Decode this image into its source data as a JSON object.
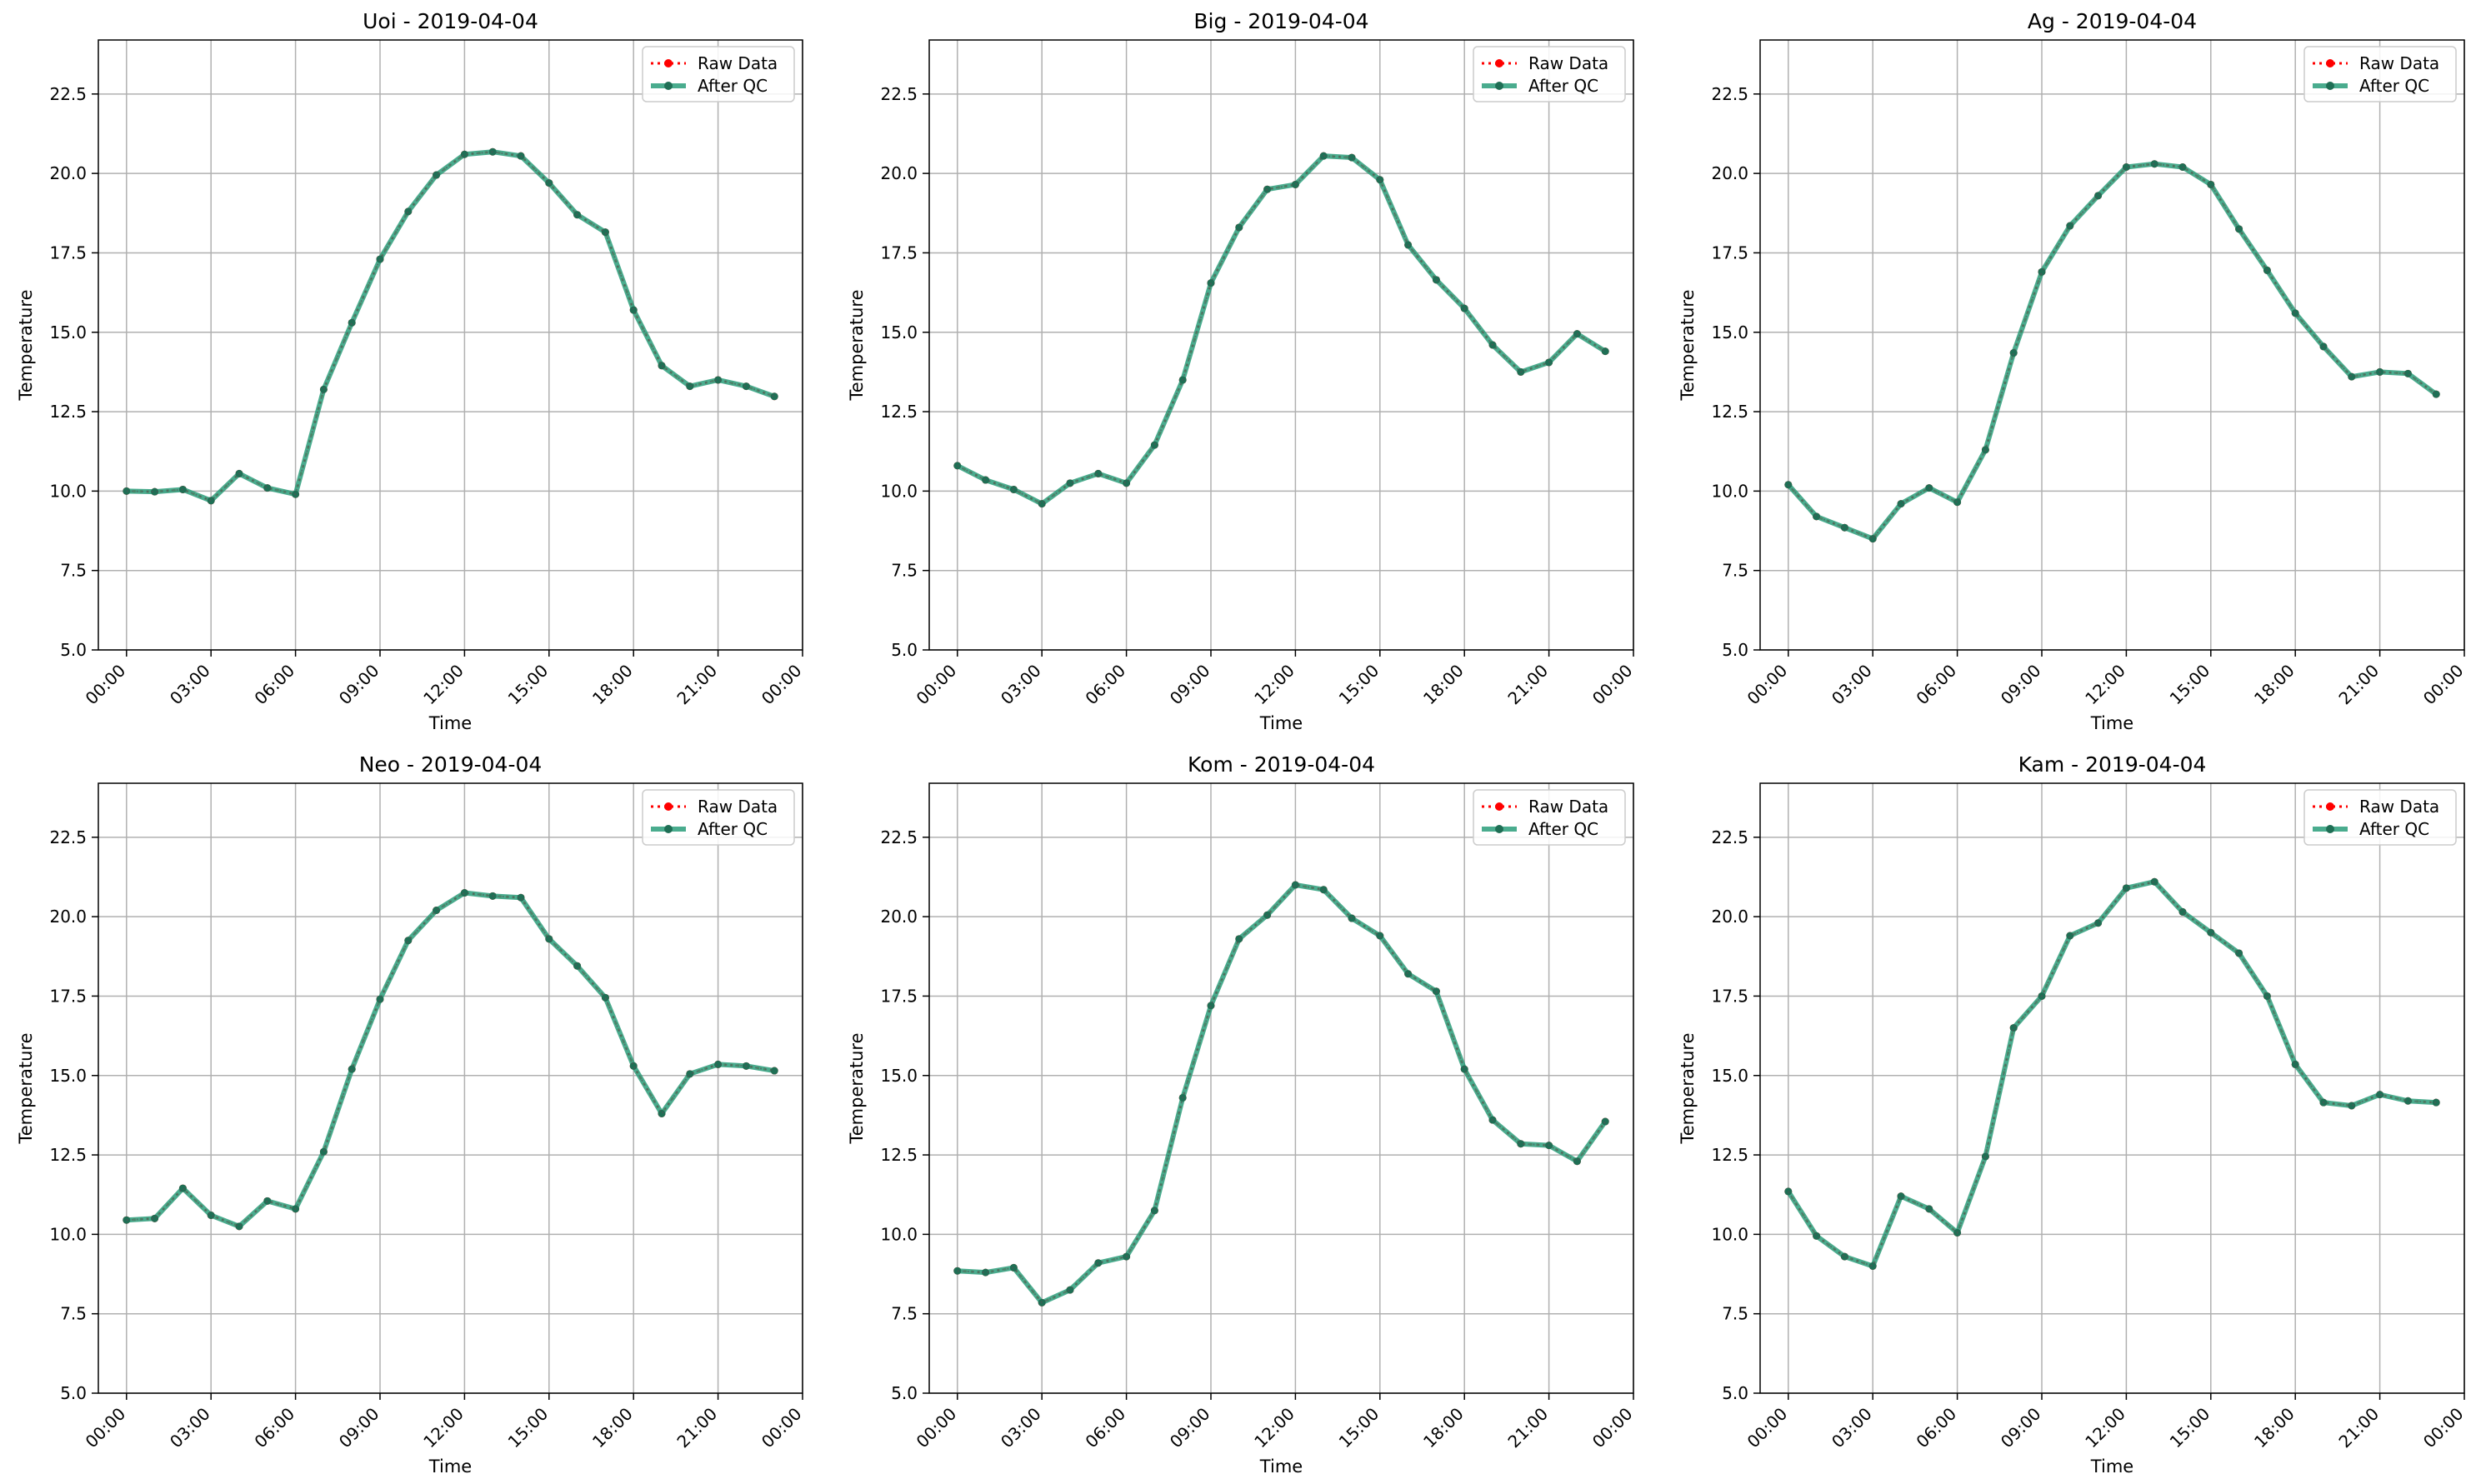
{
  "figure": {
    "background": "#ffffff"
  },
  "colors": {
    "raw": "#ff0000",
    "qc": "#2a9d7a",
    "qc_marker": "#1f6f55",
    "grid": "#b0b0b0"
  },
  "legend": {
    "placement": "upper-right",
    "raw_label": "Raw Data",
    "qc_label": "After QC"
  },
  "chart_data": [
    {
      "type": "line",
      "title": "Uoi - 2019-04-04",
      "xlabel": "Time",
      "ylabel": "Temperature",
      "xlim": [
        "2019-04-03 23:00",
        "2019-04-05 00:00"
      ],
      "ylim": [
        5.0,
        24.2
      ],
      "grid": true,
      "xticks": [
        "00:00",
        "03:00",
        "06:00",
        "09:00",
        "12:00",
        "15:00",
        "18:00",
        "21:00",
        "00:00"
      ],
      "yticks": [
        "5.0",
        "7.5",
        "10.0",
        "12.5",
        "15.0",
        "17.5",
        "20.0",
        "22.5"
      ],
      "x": [
        "00:00",
        "01:00",
        "02:00",
        "03:00",
        "04:00",
        "05:00",
        "06:00",
        "07:00",
        "08:00",
        "09:00",
        "10:00",
        "11:00",
        "12:00",
        "13:00",
        "14:00",
        "15:00",
        "16:00",
        "17:00",
        "18:00",
        "19:00",
        "20:00",
        "21:00",
        "22:00",
        "23:00"
      ],
      "series": [
        {
          "name": "Raw Data",
          "values": [
            10.0,
            9.98,
            10.05,
            9.7,
            10.55,
            10.1,
            9.9,
            13.2,
            15.3,
            17.3,
            18.8,
            19.95,
            20.6,
            20.68,
            20.55,
            19.7,
            18.7,
            18.15,
            15.7,
            13.95,
            13.3,
            13.5,
            13.3,
            12.98
          ]
        },
        {
          "name": "After QC",
          "values": [
            10.0,
            9.98,
            10.05,
            9.7,
            10.55,
            10.1,
            9.9,
            13.2,
            15.3,
            17.3,
            18.8,
            19.95,
            20.6,
            20.68,
            20.55,
            19.7,
            18.7,
            18.15,
            15.7,
            13.95,
            13.3,
            13.5,
            13.3,
            12.98
          ]
        }
      ]
    },
    {
      "type": "line",
      "title": "Big - 2019-04-04",
      "xlabel": "Time",
      "ylabel": "Temperature",
      "xlim": [
        "2019-04-03 23:00",
        "2019-04-05 00:00"
      ],
      "ylim": [
        5.0,
        24.2
      ],
      "grid": true,
      "xticks": [
        "00:00",
        "03:00",
        "06:00",
        "09:00",
        "12:00",
        "15:00",
        "18:00",
        "21:00",
        "00:00"
      ],
      "yticks": [
        "5.0",
        "7.5",
        "10.0",
        "12.5",
        "15.0",
        "17.5",
        "20.0",
        "22.5"
      ],
      "x": [
        "00:00",
        "01:00",
        "02:00",
        "03:00",
        "04:00",
        "05:00",
        "06:00",
        "07:00",
        "08:00",
        "09:00",
        "10:00",
        "11:00",
        "12:00",
        "13:00",
        "14:00",
        "15:00",
        "16:00",
        "17:00",
        "18:00",
        "19:00",
        "20:00",
        "21:00",
        "22:00",
        "23:00"
      ],
      "series": [
        {
          "name": "Raw Data",
          "values": [
            10.8,
            10.35,
            10.05,
            9.6,
            10.25,
            10.55,
            10.25,
            11.45,
            13.5,
            16.55,
            18.3,
            19.5,
            19.65,
            20.55,
            20.5,
            19.8,
            17.75,
            16.65,
            15.75,
            14.6,
            13.75,
            14.05,
            14.95,
            14.4
          ]
        },
        {
          "name": "After QC",
          "values": [
            10.8,
            10.35,
            10.05,
            9.6,
            10.25,
            10.55,
            10.25,
            11.45,
            13.5,
            16.55,
            18.3,
            19.5,
            19.65,
            20.55,
            20.5,
            19.8,
            17.75,
            16.65,
            15.75,
            14.6,
            13.75,
            14.05,
            14.95,
            14.4
          ]
        }
      ]
    },
    {
      "type": "line",
      "title": "Ag - 2019-04-04",
      "xlabel": "Time",
      "ylabel": "Temperature",
      "xlim": [
        "2019-04-03 23:00",
        "2019-04-05 00:00"
      ],
      "ylim": [
        5.0,
        24.2
      ],
      "grid": true,
      "xticks": [
        "00:00",
        "03:00",
        "06:00",
        "09:00",
        "12:00",
        "15:00",
        "18:00",
        "21:00",
        "00:00"
      ],
      "yticks": [
        "5.0",
        "7.5",
        "10.0",
        "12.5",
        "15.0",
        "17.5",
        "20.0",
        "22.5"
      ],
      "x": [
        "00:00",
        "01:00",
        "02:00",
        "03:00",
        "04:00",
        "05:00",
        "06:00",
        "07:00",
        "08:00",
        "09:00",
        "10:00",
        "11:00",
        "12:00",
        "13:00",
        "14:00",
        "15:00",
        "16:00",
        "17:00",
        "18:00",
        "19:00",
        "20:00",
        "21:00",
        "22:00",
        "23:00"
      ],
      "series": [
        {
          "name": "Raw Data",
          "values": [
            10.2,
            9.2,
            8.85,
            8.5,
            9.6,
            10.1,
            9.65,
            11.3,
            14.35,
            16.9,
            18.35,
            19.3,
            20.2,
            20.3,
            20.2,
            19.65,
            18.25,
            16.95,
            15.6,
            14.55,
            13.6,
            13.75,
            13.7,
            13.05
          ]
        },
        {
          "name": "After QC",
          "values": [
            10.2,
            9.2,
            8.85,
            8.5,
            9.6,
            10.1,
            9.65,
            11.3,
            14.35,
            16.9,
            18.35,
            19.3,
            20.2,
            20.3,
            20.2,
            19.65,
            18.25,
            16.95,
            15.6,
            14.55,
            13.6,
            13.75,
            13.7,
            13.05
          ]
        }
      ]
    },
    {
      "type": "line",
      "title": "Neo - 2019-04-04",
      "xlabel": "Time",
      "ylabel": "Temperature",
      "xlim": [
        "2019-04-03 23:00",
        "2019-04-05 00:00"
      ],
      "ylim": [
        5.0,
        24.2
      ],
      "grid": true,
      "xticks": [
        "00:00",
        "03:00",
        "06:00",
        "09:00",
        "12:00",
        "15:00",
        "18:00",
        "21:00",
        "00:00"
      ],
      "yticks": [
        "5.0",
        "7.5",
        "10.0",
        "12.5",
        "15.0",
        "17.5",
        "20.0",
        "22.5"
      ],
      "x": [
        "00:00",
        "01:00",
        "02:00",
        "03:00",
        "04:00",
        "05:00",
        "06:00",
        "07:00",
        "08:00",
        "09:00",
        "10:00",
        "11:00",
        "12:00",
        "13:00",
        "14:00",
        "15:00",
        "16:00",
        "17:00",
        "18:00",
        "19:00",
        "20:00",
        "21:00",
        "22:00",
        "23:00"
      ],
      "series": [
        {
          "name": "Raw Data",
          "values": [
            10.45,
            10.5,
            11.45,
            10.6,
            10.25,
            11.05,
            10.8,
            12.6,
            15.2,
            17.4,
            19.25,
            20.2,
            20.75,
            20.65,
            20.6,
            19.3,
            18.45,
            17.45,
            15.3,
            13.8,
            15.05,
            15.35,
            15.3,
            15.15
          ]
        },
        {
          "name": "After QC",
          "values": [
            10.45,
            10.5,
            11.45,
            10.6,
            10.25,
            11.05,
            10.8,
            12.6,
            15.2,
            17.4,
            19.25,
            20.2,
            20.75,
            20.65,
            20.6,
            19.3,
            18.45,
            17.45,
            15.3,
            13.8,
            15.05,
            15.35,
            15.3,
            15.15
          ]
        }
      ]
    },
    {
      "type": "line",
      "title": "Kom - 2019-04-04",
      "xlabel": "Time",
      "ylabel": "Temperature",
      "xlim": [
        "2019-04-03 23:00",
        "2019-04-05 00:00"
      ],
      "ylim": [
        5.0,
        24.2
      ],
      "grid": true,
      "xticks": [
        "00:00",
        "03:00",
        "06:00",
        "09:00",
        "12:00",
        "15:00",
        "18:00",
        "21:00",
        "00:00"
      ],
      "yticks": [
        "5.0",
        "7.5",
        "10.0",
        "12.5",
        "15.0",
        "17.5",
        "20.0",
        "22.5"
      ],
      "x": [
        "00:00",
        "01:00",
        "02:00",
        "03:00",
        "04:00",
        "05:00",
        "06:00",
        "07:00",
        "08:00",
        "09:00",
        "10:00",
        "11:00",
        "12:00",
        "13:00",
        "14:00",
        "15:00",
        "16:00",
        "17:00",
        "18:00",
        "19:00",
        "20:00",
        "21:00",
        "22:00",
        "23:00"
      ],
      "series": [
        {
          "name": "Raw Data",
          "values": [
            8.85,
            8.8,
            8.95,
            7.85,
            8.25,
            9.1,
            9.3,
            10.75,
            14.3,
            17.2,
            19.3,
            20.05,
            21.0,
            20.85,
            19.95,
            19.4,
            18.2,
            17.65,
            15.2,
            13.6,
            12.85,
            12.8,
            12.3,
            13.55
          ]
        },
        {
          "name": "After QC",
          "values": [
            8.85,
            8.8,
            8.95,
            7.85,
            8.25,
            9.1,
            9.3,
            10.75,
            14.3,
            17.2,
            19.3,
            20.05,
            21.0,
            20.85,
            19.95,
            19.4,
            18.2,
            17.65,
            15.2,
            13.6,
            12.85,
            12.8,
            12.3,
            13.55
          ]
        }
      ]
    },
    {
      "type": "line",
      "title": "Kam - 2019-04-04",
      "xlabel": "Time",
      "ylabel": "Temperature",
      "xlim": [
        "2019-04-03 23:00",
        "2019-04-05 00:00"
      ],
      "ylim": [
        5.0,
        24.2
      ],
      "grid": true,
      "xticks": [
        "00:00",
        "03:00",
        "06:00",
        "09:00",
        "12:00",
        "15:00",
        "18:00",
        "21:00",
        "00:00"
      ],
      "yticks": [
        "5.0",
        "7.5",
        "10.0",
        "12.5",
        "15.0",
        "17.5",
        "20.0",
        "22.5"
      ],
      "x": [
        "00:00",
        "01:00",
        "02:00",
        "03:00",
        "04:00",
        "05:00",
        "06:00",
        "07:00",
        "08:00",
        "09:00",
        "10:00",
        "11:00",
        "12:00",
        "13:00",
        "14:00",
        "15:00",
        "16:00",
        "17:00",
        "18:00",
        "19:00",
        "20:00",
        "21:00",
        "22:00",
        "23:00"
      ],
      "series": [
        {
          "name": "Raw Data",
          "values": [
            11.35,
            9.95,
            9.3,
            9.0,
            11.2,
            10.8,
            10.05,
            12.45,
            16.5,
            17.5,
            19.4,
            19.8,
            20.9,
            21.1,
            20.15,
            19.5,
            18.85,
            17.5,
            15.35,
            14.15,
            14.05,
            14.4,
            14.2,
            14.15
          ]
        },
        {
          "name": "After QC",
          "values": [
            11.35,
            9.95,
            9.3,
            9.0,
            11.2,
            10.8,
            10.05,
            12.45,
            16.5,
            17.5,
            19.4,
            19.8,
            20.9,
            21.1,
            20.15,
            19.5,
            18.85,
            17.5,
            15.35,
            14.15,
            14.05,
            14.4,
            14.2,
            14.15
          ]
        }
      ]
    }
  ]
}
